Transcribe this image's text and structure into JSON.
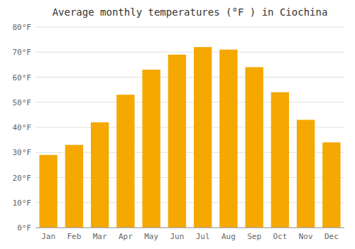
{
  "chart_data": {
    "type": "bar",
    "title": "Average monthly temperatures (°F ) in Ciochina",
    "categories": [
      "Jan",
      "Feb",
      "Mar",
      "Apr",
      "May",
      "Jun",
      "Jul",
      "Aug",
      "Sep",
      "Oct",
      "Nov",
      "Dec"
    ],
    "values": [
      29,
      33,
      42,
      53,
      63,
      69,
      72,
      71,
      64,
      54,
      43,
      34
    ],
    "color": "#F5A800",
    "ylim": [
      0,
      80
    ],
    "yticks": [
      {
        "value": 0,
        "label": "0°F"
      },
      {
        "value": 10,
        "label": "10°F"
      },
      {
        "value": 20,
        "label": "20°F"
      },
      {
        "value": 30,
        "label": "30°F"
      },
      {
        "value": 40,
        "label": "40°F"
      },
      {
        "value": 50,
        "label": "50°F"
      },
      {
        "value": 60,
        "label": "60°F"
      },
      {
        "value": 70,
        "label": "70°F"
      },
      {
        "value": 80,
        "label": "80°F"
      }
    ],
    "grid": true
  }
}
